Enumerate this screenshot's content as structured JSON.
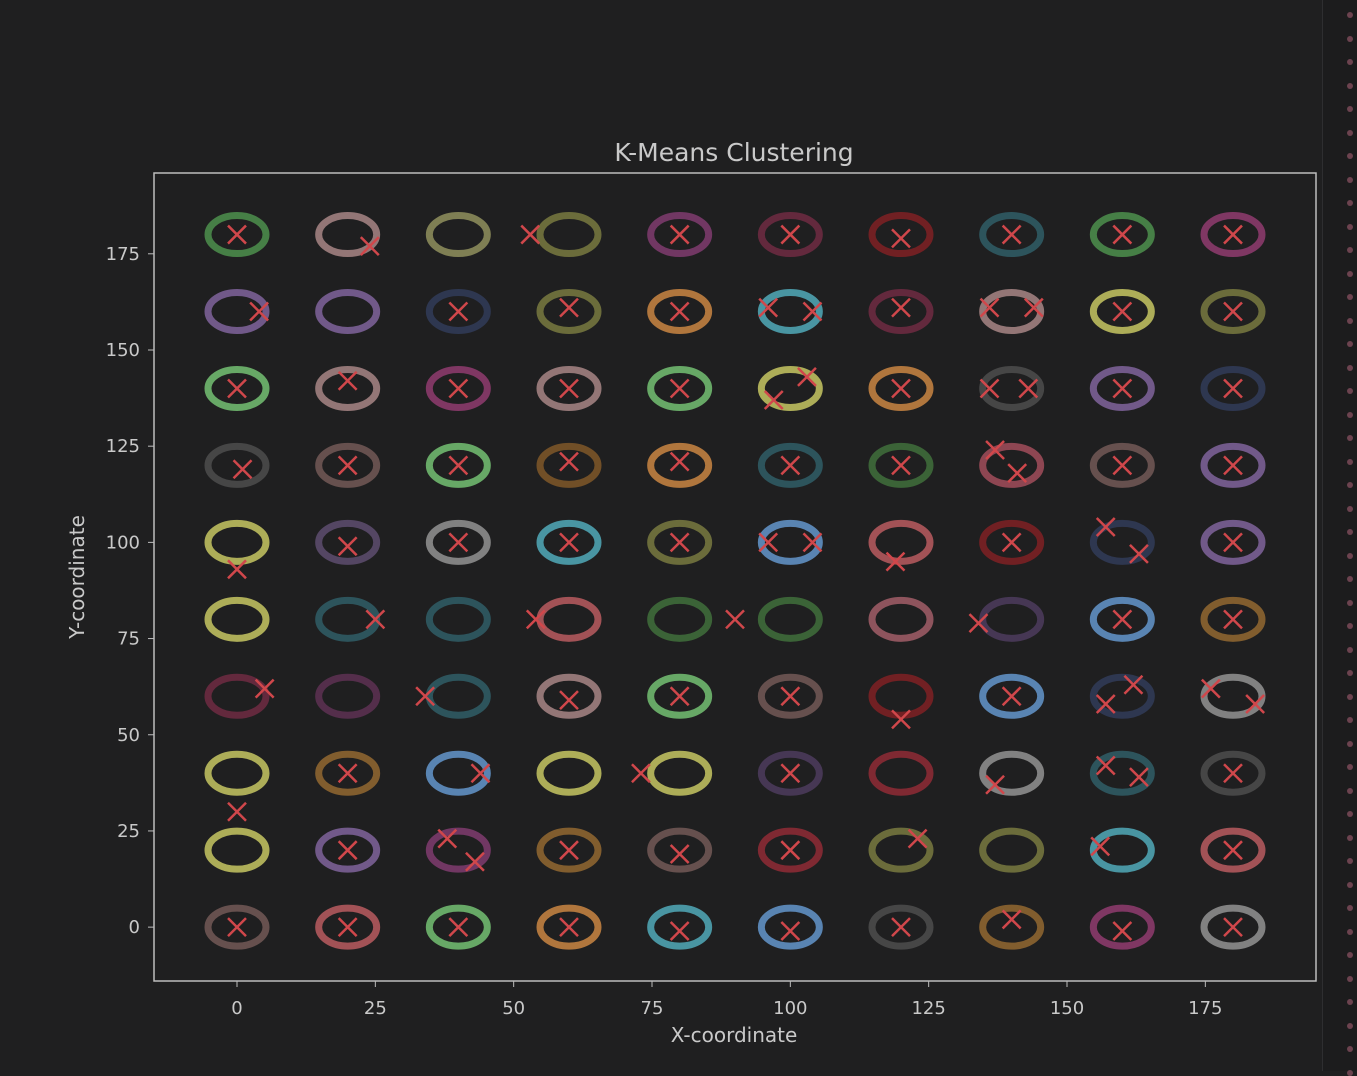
{
  "chart_data": {
    "type": "scatter",
    "title": "K-Means Clustering",
    "xlabel": "X-coordinate",
    "ylabel": "Y-coordinate",
    "xlim": [
      -15,
      195
    ],
    "ylim": [
      -14,
      196
    ],
    "xticks": [
      0,
      25,
      50,
      75,
      100,
      125,
      150,
      175
    ],
    "yticks": [
      0,
      25,
      50,
      75,
      100,
      125,
      150,
      175
    ],
    "grid": false,
    "legend": "none",
    "ring_centers_x": [
      0,
      20,
      40,
      60,
      80,
      100,
      120,
      140,
      160,
      180
    ],
    "ring_centers_y": [
      0,
      20,
      40,
      60,
      80,
      100,
      120,
      140,
      160,
      180
    ],
    "ring_colors": [
      [
        "#6e5553",
        "#b0585c",
        "#6fb76e",
        "#c08040",
        "#4ea2b0",
        "#5f8fc2",
        "#4a4a4a",
        "#8c6430",
        "#8a3a6a",
        "#8c8c8c"
      ],
      [
        "#bcbc5e",
        "#7a5f95",
        "#7a3a6a",
        "#8c6430",
        "#6e5553",
        "#8a2a34",
        "#73743e",
        "#73743e",
        "#4ea2b0",
        "#b0585c"
      ],
      [
        "#bcbc5e",
        "#8c6430",
        "#5f8fc2",
        "#bcbc5e",
        "#bcbc5e",
        "#4a3a5a",
        "#8a2a34",
        "#8c8c8c",
        "#2f5a63",
        "#4a4a4a"
      ],
      [
        "#6a2a40",
        "#5a3050",
        "#2f5a63",
        "#a08080",
        "#6fb76e",
        "#6e5553",
        "#7a2024",
        "#5f8fc2",
        "#303a55",
        "#8c8c8c"
      ],
      [
        "#bcbc5e",
        "#2f5a63",
        "#2f5a63",
        "#b0585c",
        "#3e6a3a",
        "#3e6a3a",
        "#9a5a64",
        "#4a3a5a",
        "#5f8fc2",
        "#8c6430"
      ],
      [
        "#bcbc5e",
        "#5a4a6a",
        "#8c8c8c",
        "#4ea2b0",
        "#73743e",
        "#5f8fc2",
        "#b0585c",
        "#7a2024",
        "#303a55",
        "#7a5f95"
      ],
      [
        "#4a4a4a",
        "#6e5553",
        "#6fb76e",
        "#7a5428",
        "#c08040",
        "#2f5a63",
        "#3e6a3a",
        "#9a4a58",
        "#6e5553",
        "#7a5f95"
      ],
      [
        "#6fb76e",
        "#a08080",
        "#8a3a6a",
        "#a08080",
        "#6fb76e",
        "#bcbc5e",
        "#c08040",
        "#4a4a4a",
        "#7a5f95",
        "#303a55"
      ],
      [
        "#7a5f95",
        "#7a5f95",
        "#303a55",
        "#73743e",
        "#c08040",
        "#4ea2b0",
        "#6a2a40",
        "#a08080",
        "#bcbc5e",
        "#73743e"
      ],
      [
        "#4a8a4a",
        "#a08080",
        "#8a8a5a",
        "#73743e",
        "#7a3a6a",
        "#6a2a40",
        "#7a2024",
        "#2f5a63",
        "#4a8a4a",
        "#8a3a6a"
      ]
    ],
    "centroid_color": "#d0474b",
    "centroids": [
      [
        0,
        0
      ],
      [
        20,
        0
      ],
      [
        40,
        0
      ],
      [
        60,
        0
      ],
      [
        80,
        -1
      ],
      [
        100,
        -1
      ],
      [
        120,
        0
      ],
      [
        140,
        2
      ],
      [
        160,
        -1
      ],
      [
        180,
        0
      ],
      [
        0,
        30
      ],
      [
        20,
        20
      ],
      [
        38,
        23
      ],
      [
        43,
        17
      ],
      [
        60,
        20
      ],
      [
        80,
        19
      ],
      [
        100,
        20
      ],
      [
        123,
        23
      ],
      [
        156,
        21
      ],
      [
        180,
        20
      ],
      [
        20,
        40
      ],
      [
        44,
        40
      ],
      [
        73,
        40
      ],
      [
        100,
        40
      ],
      [
        137,
        37
      ],
      [
        157,
        42
      ],
      [
        163,
        39
      ],
      [
        180,
        40
      ],
      [
        5,
        62
      ],
      [
        34,
        60
      ],
      [
        60,
        59
      ],
      [
        80,
        60
      ],
      [
        100,
        60
      ],
      [
        120,
        54
      ],
      [
        140,
        60
      ],
      [
        157,
        58
      ],
      [
        162,
        63
      ],
      [
        176,
        62
      ],
      [
        184,
        58
      ],
      [
        25,
        80
      ],
      [
        54,
        80
      ],
      [
        90,
        80
      ],
      [
        134,
        79
      ],
      [
        160,
        80
      ],
      [
        180,
        80
      ],
      [
        0,
        93
      ],
      [
        20,
        99
      ],
      [
        40,
        100
      ],
      [
        60,
        100
      ],
      [
        80,
        100
      ],
      [
        96,
        100
      ],
      [
        104,
        100
      ],
      [
        119,
        95
      ],
      [
        140,
        100
      ],
      [
        157,
        104
      ],
      [
        163,
        97
      ],
      [
        180,
        100
      ],
      [
        1,
        119
      ],
      [
        20,
        120
      ],
      [
        40,
        120
      ],
      [
        60,
        121
      ],
      [
        80,
        121
      ],
      [
        100,
        120
      ],
      [
        120,
        120
      ],
      [
        137,
        124
      ],
      [
        141,
        118
      ],
      [
        160,
        120
      ],
      [
        180,
        120
      ],
      [
        0,
        140
      ],
      [
        20,
        142
      ],
      [
        40,
        140
      ],
      [
        60,
        140
      ],
      [
        80,
        140
      ],
      [
        97,
        137
      ],
      [
        103,
        143
      ],
      [
        120,
        140
      ],
      [
        136,
        140
      ],
      [
        143,
        140
      ],
      [
        160,
        140
      ],
      [
        180,
        140
      ],
      [
        4,
        160
      ],
      [
        40,
        160
      ],
      [
        60,
        161
      ],
      [
        80,
        160
      ],
      [
        96,
        161
      ],
      [
        104,
        160
      ],
      [
        120,
        161
      ],
      [
        136,
        161
      ],
      [
        144,
        161
      ],
      [
        160,
        160
      ],
      [
        180,
        160
      ],
      [
        0,
        180
      ],
      [
        24,
        177
      ],
      [
        53,
        180
      ],
      [
        80,
        180
      ],
      [
        100,
        180
      ],
      [
        120,
        179
      ],
      [
        140,
        180
      ],
      [
        160,
        180
      ],
      [
        180,
        180
      ]
    ]
  }
}
